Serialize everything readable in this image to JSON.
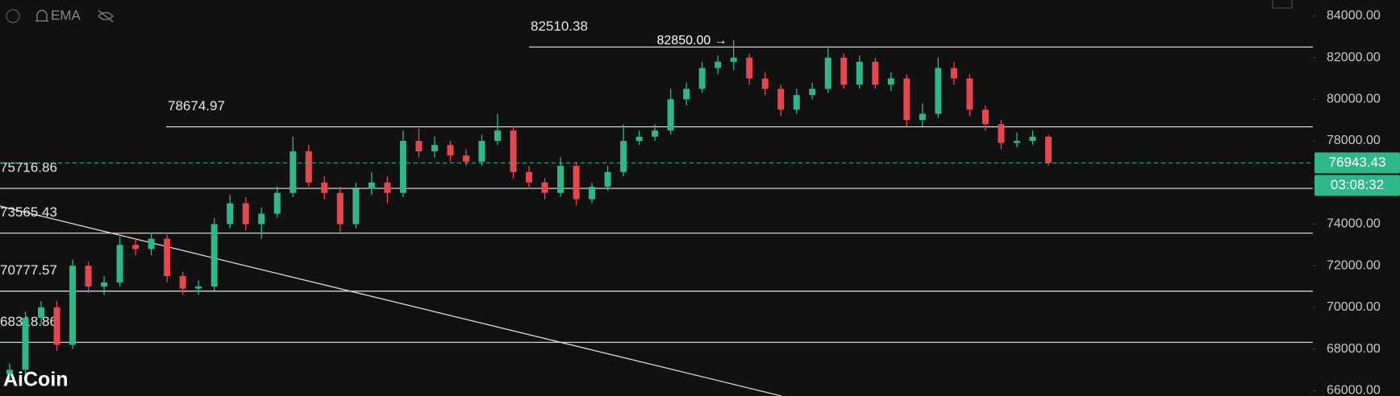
{
  "chart_data": {
    "type": "candlestick",
    "indicator": "EMA",
    "watermark": "AiCoin",
    "up_color": "#2eb88a",
    "down_color": "#e5464f",
    "open": [
      66800,
      67000,
      69500,
      70000,
      68200,
      72000,
      71000,
      71200,
      73000,
      72800,
      73300,
      71500,
      70900,
      71000,
      74000,
      75000,
      74000,
      74500,
      75500,
      77500,
      76000,
      75500,
      74000,
      75700,
      76000,
      75500,
      78000,
      77500,
      77800,
      77300,
      77000,
      78000,
      78500,
      76500,
      76000,
      75500,
      76800,
      75200,
      75800,
      76500,
      78000,
      78200,
      78500,
      80000,
      80500,
      81500,
      81800,
      82000,
      81000,
      80500,
      79500,
      80200,
      80500,
      82000,
      80700,
      81800,
      80700,
      81000,
      79000,
      79300,
      81500,
      81000,
      79500,
      78800,
      77900,
      78000,
      78200
    ],
    "high": [
      67300,
      69800,
      70300,
      70300,
      72300,
      72200,
      71500,
      73400,
      73300,
      73600,
      73500,
      71700,
      71300,
      74300,
      75400,
      75300,
      74800,
      75800,
      78200,
      77800,
      76300,
      75800,
      76000,
      76500,
      76300,
      78500,
      78600,
      78200,
      78000,
      77600,
      78300,
      79300,
      78700,
      76800,
      76200,
      77200,
      77000,
      76000,
      76800,
      78800,
      78500,
      78800,
      80500,
      80800,
      81800,
      82100,
      82850,
      82200,
      81300,
      80700,
      80500,
      80800,
      82450,
      82200,
      82100,
      82000,
      81300,
      81200,
      79800,
      82000,
      81800,
      81200,
      79700,
      79000,
      78400,
      78500,
      78300
    ],
    "low": [
      66500,
      66800,
      69200,
      67900,
      68000,
      70700,
      70600,
      71000,
      72500,
      72500,
      71200,
      70600,
      70600,
      70800,
      73800,
      73700,
      73300,
      74300,
      75300,
      75800,
      75200,
      73600,
      73800,
      75400,
      75000,
      75300,
      77200,
      77200,
      77000,
      76800,
      76800,
      77800,
      76200,
      75700,
      75200,
      75300,
      74900,
      75000,
      75600,
      76300,
      77800,
      78000,
      78300,
      79700,
      80300,
      81200,
      81400,
      80700,
      80200,
      79200,
      79300,
      80000,
      80300,
      80500,
      80500,
      80500,
      80400,
      78700,
      78700,
      79100,
      80700,
      79200,
      78500,
      77600,
      77700,
      77800,
      76800
    ],
    "close": [
      67000,
      69500,
      70000,
      68200,
      72000,
      71000,
      71200,
      73000,
      72800,
      73300,
      71500,
      70900,
      71000,
      74000,
      75000,
      74000,
      74500,
      75500,
      77500,
      76000,
      75500,
      74000,
      75700,
      76000,
      75500,
      78000,
      77500,
      77800,
      77300,
      77000,
      78000,
      78500,
      76500,
      76000,
      75500,
      76800,
      75200,
      75800,
      76500,
      78000,
      78200,
      78500,
      80000,
      80500,
      81500,
      81800,
      82000,
      81000,
      80500,
      79500,
      80200,
      80500,
      82000,
      80700,
      81800,
      80700,
      81000,
      79000,
      79300,
      81500,
      81000,
      79500,
      78800,
      77900,
      78000,
      78200,
      76943.43
    ],
    "ylim": [
      65740,
      84770
    ],
    "yticks": [
      {
        "value": 66000,
        "label": "66000.00"
      },
      {
        "value": 68000,
        "label": "68000.00"
      },
      {
        "value": 70000,
        "label": "70000.00"
      },
      {
        "value": 72000,
        "label": "72000.00"
      },
      {
        "value": 74000,
        "label": "74000.00"
      },
      {
        "value": 76000,
        "label": "76000.00"
      },
      {
        "value": 78000,
        "label": "78000.00"
      },
      {
        "value": 80000,
        "label": "80000.00"
      },
      {
        "value": 82000,
        "label": "82000.00"
      },
      {
        "value": 84000,
        "label": "84000.00"
      }
    ],
    "levels": [
      {
        "value": 82510.38,
        "label": "82510.38"
      },
      {
        "value": 78674.97,
        "label": "78674.97"
      },
      {
        "value": 75716.86,
        "label": "75716.86"
      },
      {
        "value": 73565.43,
        "label": "73565.43"
      },
      {
        "value": 70777.57,
        "label": "70777.57"
      },
      {
        "value": 68318.86,
        "label": "68318.86"
      }
    ],
    "high_marker": {
      "value": 82850,
      "label": "82850.00 →"
    },
    "last_price": {
      "value": 76943.43,
      "label": "76943.43"
    },
    "countdown": "03:08:32"
  }
}
